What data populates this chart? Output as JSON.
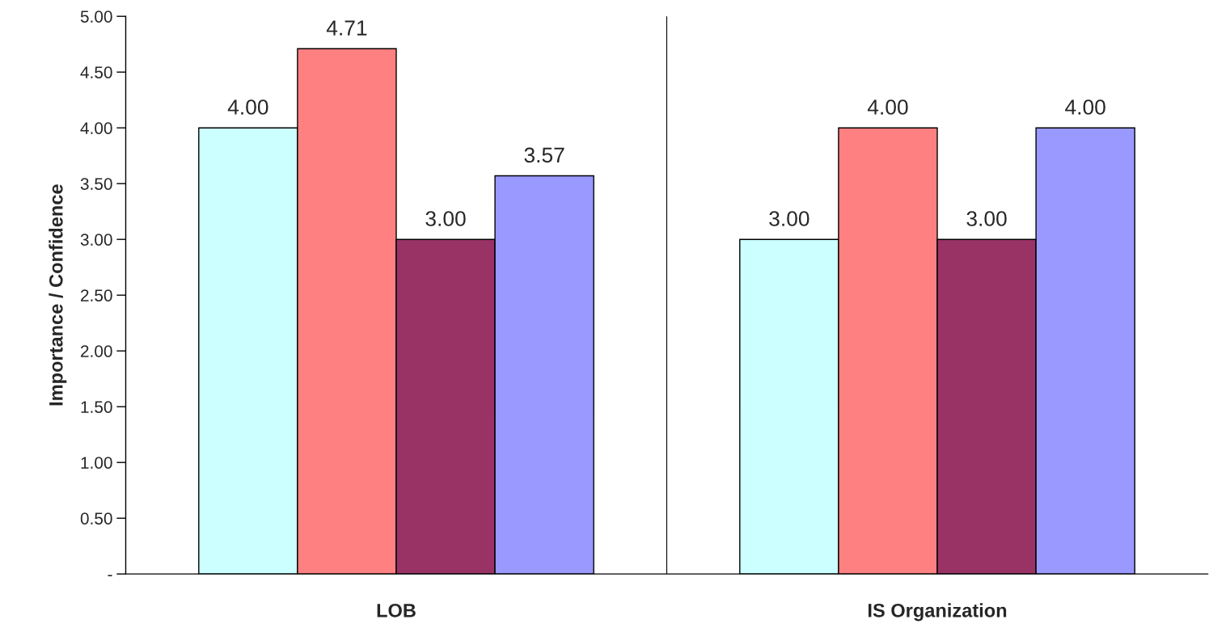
{
  "chart_data": {
    "type": "bar",
    "ylabel": "Importance / Confidence",
    "categories": [
      "LOB",
      "IS Organization"
    ],
    "series": [
      {
        "color": "#ccffff",
        "values": [
          4.0,
          3.0
        ],
        "value_labels": [
          "4.00",
          "3.00"
        ]
      },
      {
        "color": "#ff8080",
        "values": [
          4.71,
          4.0
        ],
        "value_labels": [
          "4.71",
          "4.00"
        ]
      },
      {
        "color": "#993366",
        "values": [
          3.0,
          3.0
        ],
        "value_labels": [
          "3.00",
          "3.00"
        ]
      },
      {
        "color": "#9999ff",
        "values": [
          3.57,
          4.0
        ],
        "value_labels": [
          "3.57",
          "4.00"
        ]
      }
    ],
    "ylim": [
      0,
      5
    ],
    "yticks": [
      {
        "value": 0,
        "label": "-"
      },
      {
        "value": 0.5,
        "label": "0.50"
      },
      {
        "value": 1,
        "label": "1.00"
      },
      {
        "value": 1.5,
        "label": "1.50"
      },
      {
        "value": 2,
        "label": "2.00"
      },
      {
        "value": 2.5,
        "label": "2.50"
      },
      {
        "value": 3,
        "label": "3.00"
      },
      {
        "value": 3.5,
        "label": "3.50"
      },
      {
        "value": 4,
        "label": "4.00"
      },
      {
        "value": 4.5,
        "label": "4.50"
      },
      {
        "value": 5,
        "label": "5.00"
      }
    ],
    "grid": "x"
  }
}
